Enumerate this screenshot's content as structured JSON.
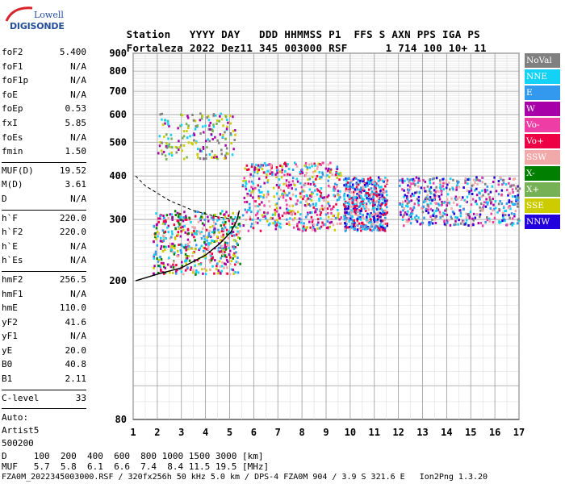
{
  "logo": {
    "top": "Lowell",
    "bottom": "DIGISONDE"
  },
  "header": {
    "line1": [
      "Station",
      "YYYY",
      "DAY",
      "DDD",
      "HHMMSS",
      "P1",
      "FFS",
      "S",
      "AXN",
      "PPS",
      "IGA",
      "PS"
    ],
    "line2": [
      "Fortaleza",
      "2022",
      "Dez11",
      "345",
      "003000",
      "RSF",
      "1",
      "714",
      "100",
      "10+",
      "11"
    ]
  },
  "params_group1": [
    {
      "name": "foF2",
      "value": "5.400"
    },
    {
      "name": "foF1",
      "value": "N/A"
    },
    {
      "name": "foF1p",
      "value": "N/A"
    },
    {
      "name": "foE",
      "value": "N/A"
    },
    {
      "name": "foEp",
      "value": "0.53"
    },
    {
      "name": "fxI",
      "value": "5.85"
    },
    {
      "name": "foEs",
      "value": "N/A"
    },
    {
      "name": "fmin",
      "value": "1.50"
    }
  ],
  "params_group2": [
    {
      "name": "MUF(D)",
      "value": "19.52"
    },
    {
      "name": "M(D)",
      "value": "3.61"
    },
    {
      "name": "D",
      "value": "N/A"
    }
  ],
  "params_group3": [
    {
      "name": "h`F",
      "value": "220.0"
    },
    {
      "name": "h`F2",
      "value": "220.0"
    },
    {
      "name": "h`E",
      "value": "N/A"
    },
    {
      "name": "h`Es",
      "value": "N/A"
    }
  ],
  "params_group4": [
    {
      "name": "hmF2",
      "value": "256.5"
    },
    {
      "name": "hmF1",
      "value": "N/A"
    },
    {
      "name": "hmE",
      "value": "110.0"
    },
    {
      "name": "yF2",
      "value": "41.6"
    },
    {
      "name": "yF1",
      "value": "N/A"
    },
    {
      "name": "yE",
      "value": "20.0"
    },
    {
      "name": "B0",
      "value": "40.8"
    },
    {
      "name": "B1",
      "value": "2.11"
    }
  ],
  "params_group5": [
    {
      "name": "C-level",
      "value": "33"
    }
  ],
  "misc": {
    "auto": "Auto:",
    "artist": "Artist5",
    "code": "500200"
  },
  "bottom": {
    "d_row": "D     100  200  400  600  800 1000 1500 3000 [km]",
    "muf_row": "MUF   5.7  5.8  6.1  6.6  7.4  8.4 11.5 19.5 [MHz]",
    "info": "FZA0M_2022345003000.RSF / 320fx256h 50 kHz 5.0 km / DPS-4 FZA0M 904 / 3.9 S 321.6 E   Ion2Png 1.3.20"
  },
  "legend": [
    {
      "label": "NoVal",
      "color": "#808080"
    },
    {
      "label": "NNE",
      "color": "#14d2f5"
    },
    {
      "label": "E",
      "color": "#3399ee"
    },
    {
      "label": "W",
      "color": "#a800a8"
    },
    {
      "label": "Vo-",
      "color": "#ee3ea6"
    },
    {
      "label": "Vo+",
      "color": "#ee0044"
    },
    {
      "label": "SSW",
      "color": "#f2a9a9"
    },
    {
      "label": "X-",
      "color": "#007f00"
    },
    {
      "label": "X+",
      "color": "#77b155"
    },
    {
      "label": "SSE",
      "color": "#cccc00"
    },
    {
      "label": "NNW",
      "color": "#2200dd"
    }
  ],
  "chart_data": {
    "type": "scatter",
    "x_label": "",
    "y_label": "",
    "x_ticks": [
      "1",
      "2",
      "3",
      "4",
      "5",
      "6",
      "7",
      "8",
      "9",
      "10",
      "11",
      "12",
      "13",
      "14",
      "15",
      "16",
      "17"
    ],
    "y_ticks": [
      "80",
      "200",
      "300",
      "400",
      "500",
      "600",
      "700",
      "800",
      "900"
    ],
    "xlim": [
      1,
      17
    ],
    "y_scale": "log",
    "ylim": [
      80,
      900
    ],
    "grid": true,
    "trace": [
      {
        "name": "x_trace",
        "points": [
          [
            1.1,
            200
          ],
          [
            2,
            209
          ],
          [
            3,
            218
          ],
          [
            4,
            237
          ],
          [
            4.6,
            256
          ],
          [
            5.05,
            276
          ],
          [
            5.3,
            298
          ],
          [
            5.4,
            318
          ]
        ]
      }
    ],
    "dashed": [
      [
        1.1,
        400
      ],
      [
        1.5,
        375
      ],
      [
        2.5,
        340
      ],
      [
        3.5,
        318
      ],
      [
        4.5,
        305
      ],
      [
        5.3,
        300
      ]
    ],
    "clusters": [
      {
        "x": [
          1.8,
          5.4
        ],
        "y": [
          210,
          320
        ],
        "colors": [
          "#ee0044",
          "#a800a8",
          "#3399ee",
          "#14d2f5",
          "#f2a9a9",
          "#007f00",
          "#cccc00"
        ]
      },
      {
        "x": [
          2.0,
          5.2
        ],
        "y": [
          450,
          610
        ],
        "colors": [
          "#cccc00",
          "#14d2f5",
          "#a800a8",
          "#808080",
          "#77b155"
        ]
      },
      {
        "x": [
          5.5,
          9.6
        ],
        "y": [
          280,
          440
        ],
        "colors": [
          "#ee0044",
          "#ee3ea6",
          "#a800a8",
          "#f2a9a9",
          "#3399ee",
          "#cccc00",
          "#14d2f5"
        ]
      },
      {
        "x": [
          9.7,
          11.5
        ],
        "y": [
          280,
          400
        ],
        "colors": [
          "#2200dd",
          "#14d2f5",
          "#3399ee",
          "#f2a9a9",
          "#ee0044"
        ]
      },
      {
        "x": [
          12.0,
          17.0
        ],
        "y": [
          290,
          400
        ],
        "colors": [
          "#2200dd",
          "#14d2f5",
          "#3399ee",
          "#a800a8",
          "#ee3ea6",
          "#f2a9a9",
          "#808080"
        ]
      }
    ]
  }
}
